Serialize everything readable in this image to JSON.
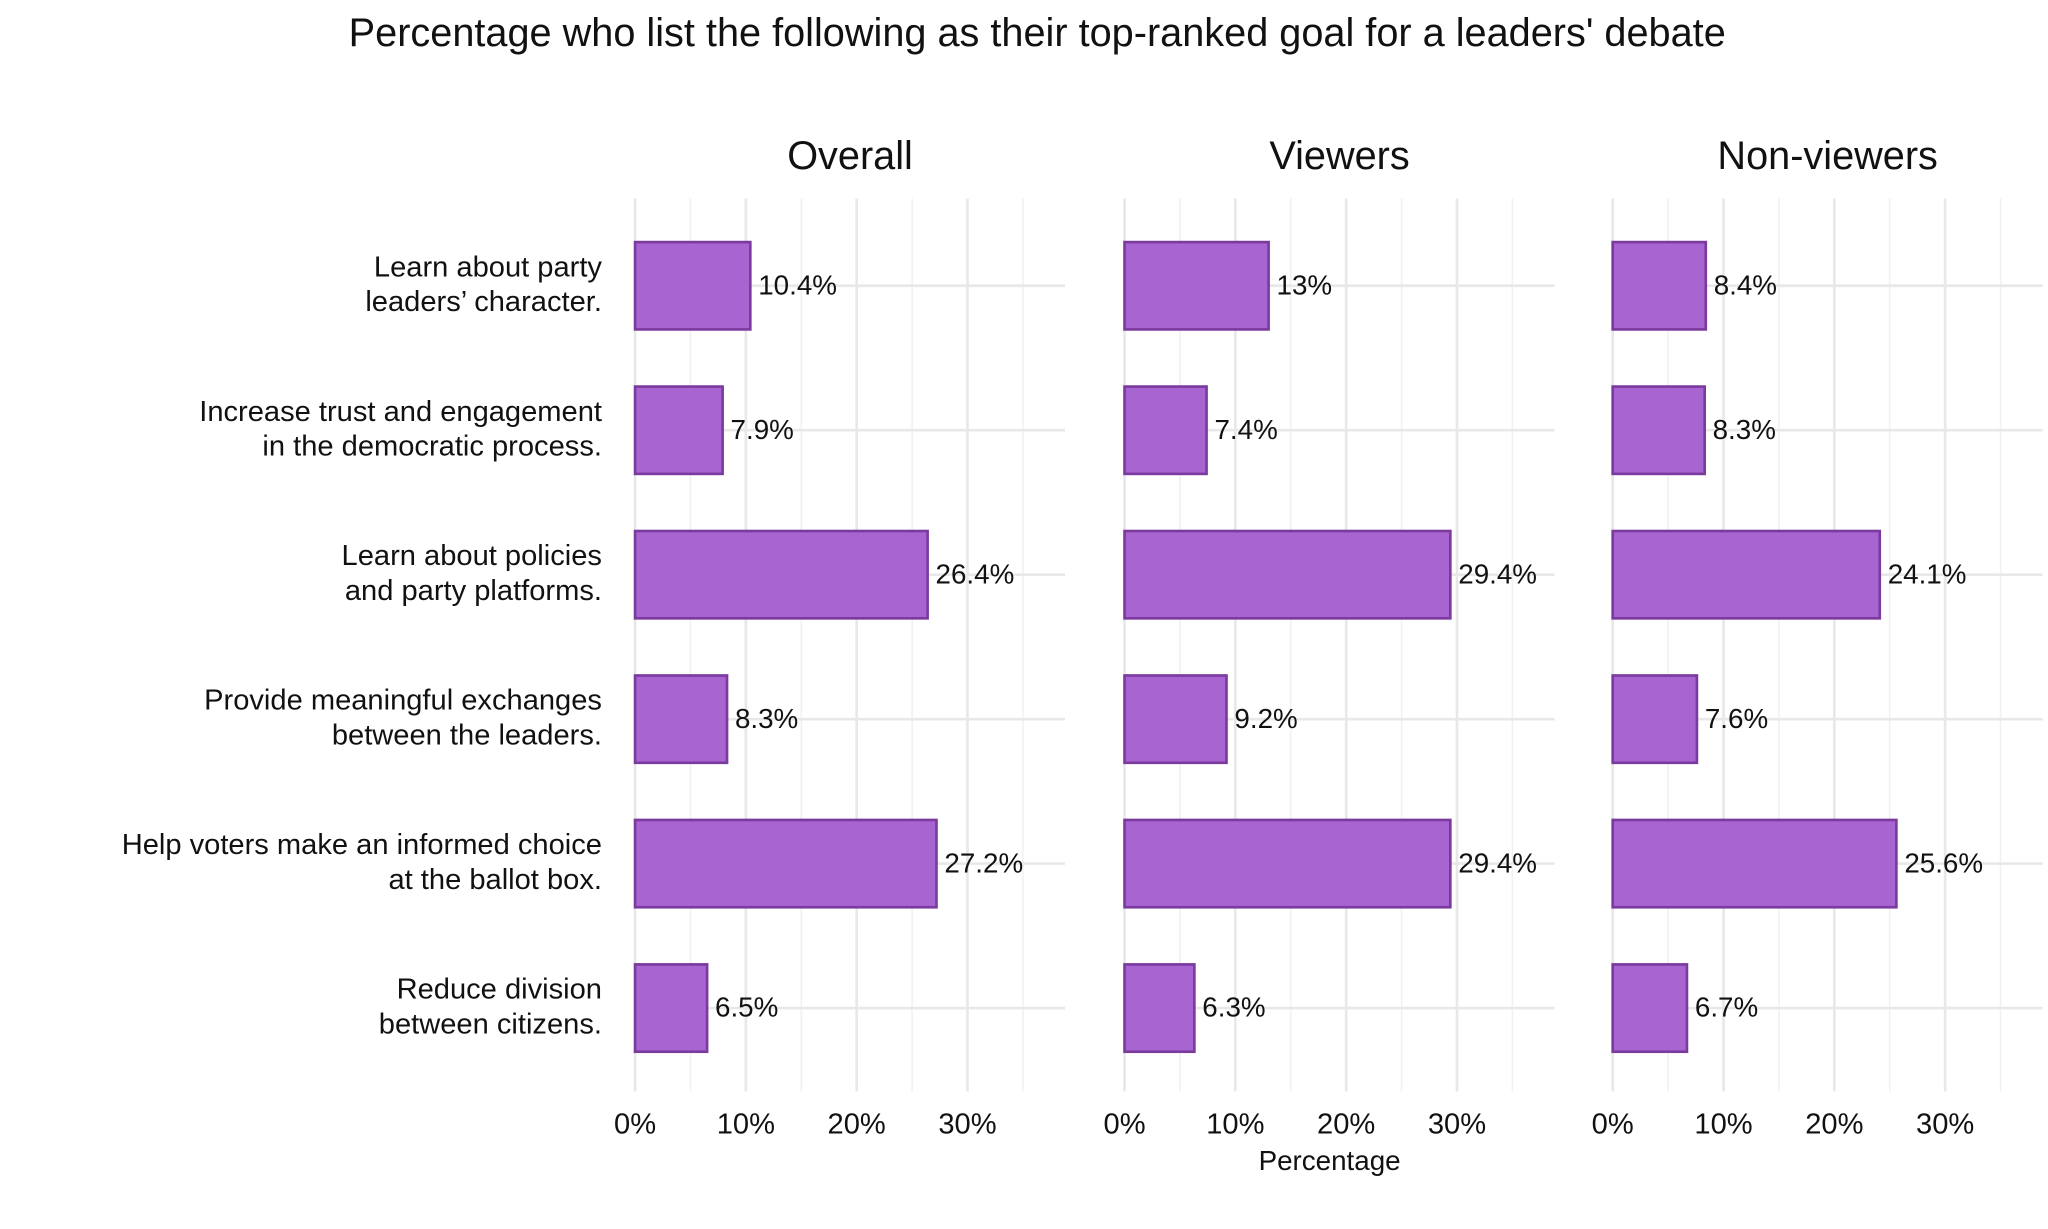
{
  "title": "Percentage who list the following as their top-ranked goal for a leaders' debate",
  "xlabel": "Percentage",
  "chart_data": [
    {
      "type": "bar",
      "title": "Overall",
      "categories": [
        "Learn about party\nleaders’ character.",
        "Increase trust and engagement\nin the democratic process.",
        "Learn about policies\nand party platforms.",
        "Provide meaningful exchanges\nbetween the leaders.",
        "Help voters make an informed choice\nat the ballot box.",
        "Reduce division\nbetween citizens."
      ],
      "values": [
        10.4,
        7.9,
        26.4,
        8.3,
        27.2,
        6.5
      ],
      "value_labels": [
        "10.4%",
        "7.9%",
        "26.4%",
        "8.3%",
        "27.2%",
        "6.5%"
      ],
      "color": "#a865d1",
      "edge_color": "#7b3a9e",
      "xlim": [
        0,
        38.8
      ],
      "xticks": [
        {
          "value": 0,
          "label": "0%"
        },
        {
          "value": 10,
          "label": "10%"
        },
        {
          "value": 20,
          "label": "20%"
        },
        {
          "value": 30,
          "label": "30%"
        }
      ],
      "xminor": [
        5,
        15,
        25,
        35
      ],
      "grid": true
    },
    {
      "type": "bar",
      "title": "Viewers",
      "values": [
        13,
        7.4,
        29.4,
        9.2,
        29.4,
        6.3
      ],
      "value_labels": [
        "13%",
        "7.4%",
        "29.4%",
        "9.2%",
        "29.4%",
        "6.3%"
      ],
      "color": "#a865d1",
      "edge_color": "#7b3a9e",
      "xlim": [
        0,
        38.8
      ],
      "xticks": [
        {
          "value": 0,
          "label": "0%"
        },
        {
          "value": 10,
          "label": "10%"
        },
        {
          "value": 20,
          "label": "20%"
        },
        {
          "value": 30,
          "label": "30%"
        }
      ],
      "xminor": [
        5,
        15,
        25,
        35
      ],
      "grid": true
    },
    {
      "type": "bar",
      "title": "Non-viewers",
      "values": [
        8.4,
        8.3,
        24.1,
        7.6,
        25.6,
        6.7
      ],
      "value_labels": [
        "8.4%",
        "8.3%",
        "24.1%",
        "7.6%",
        "25.6%",
        "6.7%"
      ],
      "color": "#a865d1",
      "edge_color": "#7b3a9e",
      "xlim": [
        0,
        38.8
      ],
      "xticks": [
        {
          "value": 0,
          "label": "0%"
        },
        {
          "value": 10,
          "label": "10%"
        },
        {
          "value": 20,
          "label": "20%"
        },
        {
          "value": 30,
          "label": "30%"
        }
      ],
      "xminor": [
        5,
        15,
        25,
        35
      ],
      "grid": true
    }
  ]
}
